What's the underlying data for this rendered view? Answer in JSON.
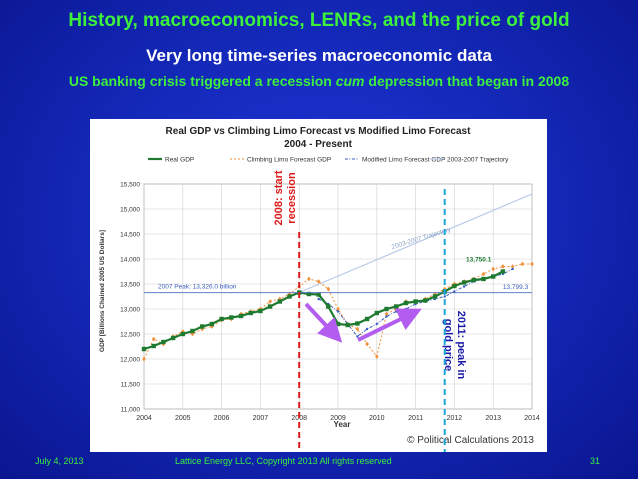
{
  "slide": {
    "title": "History, macroeconomics, LENRs, and the price of gold",
    "subtitle": "Very long time-series macroeconomic data",
    "headline_pre": "US banking crisis triggered a recession ",
    "headline_em": "cum",
    "headline_post": " depression that began in 2008",
    "footer_date": "July 4, 2013",
    "footer_copyright": "Lattice Energy LLC, Copyright 2013   All rights reserved",
    "page_number": "31"
  },
  "overlay_annotations": {
    "recession_label_1": "2008: start",
    "recession_label_2": "recession",
    "gold_label_1": "2011: peak in",
    "gold_label_2": "gold price",
    "recession_line_color": "#dd1a1a",
    "gold_line_color": "#1aa7d8",
    "arrow_color": "#b35cf0"
  },
  "chart_data": {
    "type": "line",
    "title": "Real GDP vs Climbing Limo Forecast vs Modified Limo Forecast",
    "subtitle": "2004 - Present",
    "xlabel": "Year",
    "ylabel": "GDP [Billions Chained 2005 US Dollars]",
    "xlim": [
      2004,
      2014
    ],
    "ylim": [
      11000,
      15500
    ],
    "x_ticks": [
      "2004",
      "2005",
      "2006",
      "2007",
      "2008",
      "2009",
      "2010",
      "2011",
      "2012",
      "2013",
      "2014"
    ],
    "y_ticks": [
      "11,000",
      "11,500",
      "12,000",
      "12,500",
      "13,000",
      "13,500",
      "14,000",
      "14,500",
      "15,000",
      "15,500"
    ],
    "legend_position": "top",
    "grid": true,
    "peak_line": {
      "value": 13326,
      "label": "2007 Peak: 13,326.0 billion"
    },
    "trajectory_label": "2003-2007 Trajectory",
    "end_labels": {
      "real": "13,750.1",
      "modified": "13,799.3"
    },
    "copyright": "© Political Calculations 2013",
    "series": [
      {
        "name": "Real GDP",
        "color": "#1e7a2e",
        "x": [
          2004,
          2004.25,
          2004.5,
          2004.75,
          2005,
          2005.25,
          2005.5,
          2005.75,
          2006,
          2006.25,
          2006.5,
          2006.75,
          2007,
          2007.25,
          2007.5,
          2007.75,
          2008,
          2008.25,
          2008.5,
          2008.75,
          2009,
          2009.25,
          2009.5,
          2009.75,
          2010,
          2010.25,
          2010.5,
          2010.75,
          2011,
          2011.25,
          2011.5,
          2011.75,
          2012,
          2012.25,
          2012.5,
          2012.75,
          2013,
          2013.25
        ],
        "y": [
          12200,
          12260,
          12340,
          12420,
          12500,
          12560,
          12650,
          12700,
          12800,
          12830,
          12860,
          12920,
          12960,
          13050,
          13150,
          13250,
          13330,
          13300,
          13290,
          13050,
          12700,
          12680,
          12710,
          12800,
          12920,
          13000,
          13050,
          13120,
          13150,
          13170,
          13250,
          13350,
          13460,
          13530,
          13580,
          13600,
          13650,
          13750
        ]
      },
      {
        "name": "Climbing Limo Forecast GDP",
        "color": "#f0923c",
        "x": [
          2004,
          2004.25,
          2004.5,
          2004.75,
          2005,
          2005.25,
          2005.5,
          2005.75,
          2006,
          2006.25,
          2006.5,
          2006.75,
          2007,
          2007.25,
          2007.5,
          2007.75,
          2008,
          2008.25,
          2008.5,
          2008.75,
          2009,
          2009.25,
          2009.5,
          2009.75,
          2010,
          2010.25,
          2010.5,
          2010.75,
          2011,
          2011.25,
          2011.5,
          2011.75,
          2012,
          2012.25,
          2012.5,
          2012.75,
          2013,
          2013.25,
          2013.5,
          2013.75,
          2014
        ],
        "y": [
          12000,
          12400,
          12300,
          12450,
          12550,
          12500,
          12600,
          12650,
          12780,
          12800,
          12900,
          12950,
          13000,
          13150,
          13200,
          13300,
          13450,
          13600,
          13550,
          13400,
          13000,
          12700,
          12600,
          12300,
          12050,
          12900,
          13000,
          13150,
          13150,
          13200,
          13300,
          13400,
          13500,
          13550,
          13600,
          13700,
          13800,
          13850,
          13850,
          13900,
          13900
        ]
      },
      {
        "name": "Modified Limo Forecast GDP",
        "color": "#3b5fbe",
        "x": [
          2008.5,
          2008.75,
          2009,
          2009.25,
          2009.5,
          2009.75,
          2010,
          2010.25,
          2010.5,
          2010.75,
          2011,
          2011.25,
          2011.5,
          2011.75,
          2012,
          2012.25,
          2012.5,
          2012.75,
          2013,
          2013.25,
          2013.5
        ],
        "y": [
          13200,
          13100,
          12950,
          12700,
          12450,
          12600,
          12700,
          12850,
          12950,
          13000,
          13100,
          13150,
          13200,
          13250,
          13350,
          13450,
          13550,
          13600,
          13650,
          13700,
          13800
        ]
      },
      {
        "name": "2003-2007 Trajectory",
        "color": "#b7c9e6",
        "x": [
          2008,
          2014
        ],
        "y": [
          13330,
          15300
        ]
      }
    ]
  }
}
